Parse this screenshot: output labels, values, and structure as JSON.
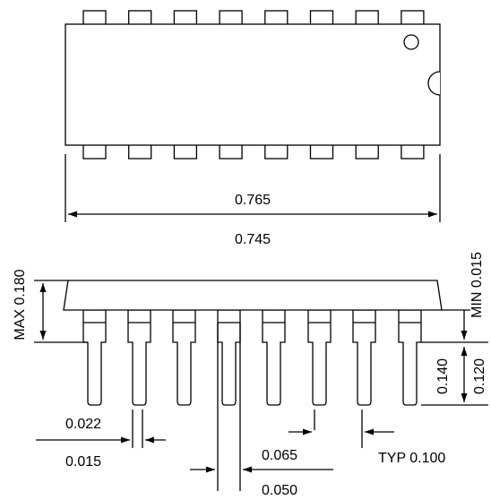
{
  "top_view": {
    "body_length_max": "0.765",
    "body_length_min": "0.745"
  },
  "side_view": {
    "seated_height": "MAX 0.180",
    "standoff": "MIN 0.015",
    "lead_length_max": "0.140",
    "lead_length_min": "0.120",
    "lead_width_max": "0.022",
    "lead_width_min": "0.015",
    "shoulder_width_max": "0.065",
    "shoulder_width_min": "0.050",
    "lead_pitch": "TYP 0.100"
  },
  "colors": {
    "line": "#000000",
    "background": "#ffffff"
  }
}
